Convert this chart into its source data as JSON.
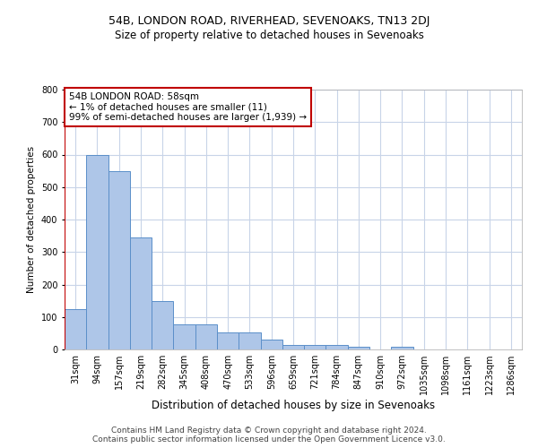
{
  "title": "54B, LONDON ROAD, RIVERHEAD, SEVENOAKS, TN13 2DJ",
  "subtitle": "Size of property relative to detached houses in Sevenoaks",
  "xlabel": "Distribution of detached houses by size in Sevenoaks",
  "ylabel": "Number of detached properties",
  "categories": [
    "31sqm",
    "94sqm",
    "157sqm",
    "219sqm",
    "282sqm",
    "345sqm",
    "408sqm",
    "470sqm",
    "533sqm",
    "596sqm",
    "659sqm",
    "721sqm",
    "784sqm",
    "847sqm",
    "910sqm",
    "972sqm",
    "1035sqm",
    "1098sqm",
    "1161sqm",
    "1223sqm",
    "1286sqm"
  ],
  "values": [
    125,
    600,
    550,
    345,
    148,
    78,
    78,
    52,
    52,
    30,
    15,
    13,
    13,
    8,
    0,
    8,
    0,
    0,
    0,
    0,
    0
  ],
  "bar_color": "#aec6e8",
  "bar_edge_color": "#5b8fc9",
  "highlight_edge_color": "#c00000",
  "annotation_box_text": "54B LONDON ROAD: 58sqm\n← 1% of detached houses are smaller (11)\n99% of semi-detached houses are larger (1,939) →",
  "ylim": [
    0,
    800
  ],
  "yticks": [
    0,
    100,
    200,
    300,
    400,
    500,
    600,
    700,
    800
  ],
  "footer_line1": "Contains HM Land Registry data © Crown copyright and database right 2024.",
  "footer_line2": "Contains public sector information licensed under the Open Government Licence v3.0.",
  "bg_color": "#ffffff",
  "grid_color": "#c8d4e8",
  "title_fontsize": 9,
  "subtitle_fontsize": 8.5,
  "xlabel_fontsize": 8.5,
  "ylabel_fontsize": 7.5,
  "tick_fontsize": 7,
  "annotation_fontsize": 7.5,
  "footer_fontsize": 6.5
}
